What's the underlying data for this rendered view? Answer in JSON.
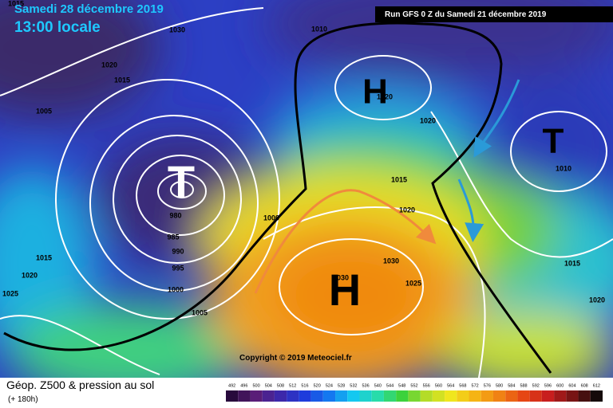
{
  "header": {
    "date": "Samedi 28 décembre 2019",
    "time": "13:00 locale",
    "run": "Run GFS 0 Z du Samedi 21 décembre 2019"
  },
  "pressure_systems": [
    {
      "label": "H"
    },
    {
      "label": "T"
    },
    {
      "label": "T"
    },
    {
      "label": "H"
    }
  ],
  "isobar_labels": [
    "1015",
    "1030",
    "1010",
    "1020",
    "1015",
    "1020",
    "1005",
    "1020",
    "1015",
    "980",
    "985",
    "990",
    "995",
    "1000",
    "1015",
    "1020",
    "1025",
    "1030",
    "1025",
    "1030",
    "1020",
    "1010",
    "1015",
    "1020",
    "1005",
    "1000"
  ],
  "copyright": "Copyright © 2019 Meteociel.fr",
  "legend": {
    "title": "Géop. Z500 & pression au sol",
    "lead_time": "(+ 180h)",
    "scale_labels": [
      492,
      496,
      500,
      504,
      508,
      512,
      516,
      520,
      524,
      528,
      532,
      536,
      540,
      544,
      548,
      552,
      556,
      560,
      564,
      568,
      572,
      576,
      580,
      584,
      588,
      592,
      596,
      600,
      604,
      608,
      612
    ]
  }
}
